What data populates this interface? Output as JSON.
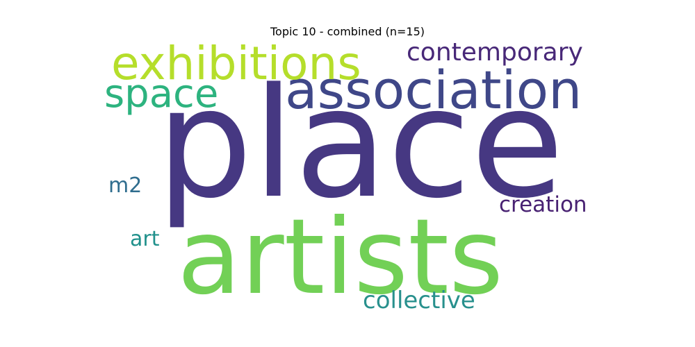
{
  "title": "Topic 10 - combined (n=15)",
  "words": [
    {
      "id": "place",
      "text": "place",
      "color": "#463882"
    },
    {
      "id": "artists",
      "text": "artists",
      "color": "#72D056"
    },
    {
      "id": "association",
      "text": "association",
      "color": "#3F4788"
    },
    {
      "id": "exhibitions",
      "text": "exhibitions",
      "color": "#B5DE2B"
    },
    {
      "id": "space",
      "text": "space",
      "color": "#2DB37F"
    },
    {
      "id": "contemporary",
      "text": "contemporary",
      "color": "#482878"
    },
    {
      "id": "creation",
      "text": "creation",
      "color": "#482172"
    },
    {
      "id": "collective",
      "text": "collective",
      "color": "#28908D"
    },
    {
      "id": "m2",
      "text": "m2",
      "color": "#2F6D8E"
    },
    {
      "id": "art",
      "text": "art",
      "color": "#21918C"
    }
  ]
}
